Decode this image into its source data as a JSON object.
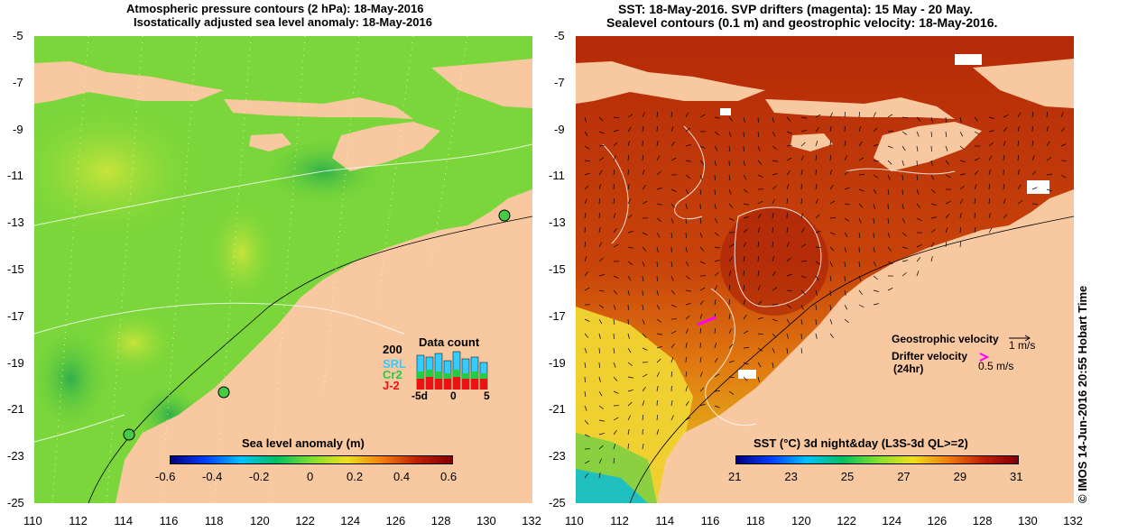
{
  "left_panel": {
    "title_line1": "Atmospheric pressure contours (2 hPa): 18-May-2016",
    "title_line2": "Isostatically adjusted sea level anomaly: 18-May-2016",
    "colorbar": {
      "title": "Sea level anomaly (m)",
      "ticks": [
        "-0.6",
        "-0.4",
        "-0.2",
        "0",
        "0.2",
        "0.4",
        "0.6"
      ]
    },
    "data_count": {
      "title": "Data count",
      "ymax": "200",
      "series": [
        "SRL",
        "Cr2",
        "J-2"
      ],
      "series_colors": [
        "#33ccff",
        "#22cc44",
        "#ee1111"
      ],
      "xticks": [
        "-5d",
        "0",
        "5"
      ]
    }
  },
  "right_panel": {
    "title_line1": "SST: 18-May-2016. SVP drifters (magenta): 15 May - 20 May.",
    "title_line2": "Sealevel contours (0.1 m) and geostrophic velocity: 18-May-2016.",
    "colorbar": {
      "title": "SST (°C) 3d night&day (L3S-3d QL>=2)",
      "ticks": [
        "21",
        "23",
        "25",
        "27",
        "29",
        "31"
      ]
    },
    "legend": {
      "geostrophic": "Geostrophic velocity",
      "geostrophic_scale": "1 m/s",
      "drifter_line1": "Drifter velocity",
      "drifter_line2": "(24hr)",
      "drifter_scale": "0.5 m/s"
    }
  },
  "axes": {
    "lat_ticks": [
      "-5",
      "-7",
      "-9",
      "-11",
      "-13",
      "-15",
      "-17",
      "-19",
      "-21",
      "-23",
      "-25"
    ],
    "lon_ticks": [
      "110",
      "112",
      "114",
      "116",
      "118",
      "120",
      "122",
      "124",
      "126",
      "128",
      "130",
      "132"
    ]
  },
  "credit": "© IMOS 14-Jun-2016 20:55 Hobart Time",
  "colors": {
    "land": "#f8c8a0",
    "ocean_left": "#7ad63a",
    "ocean_right": "#c8440a"
  }
}
